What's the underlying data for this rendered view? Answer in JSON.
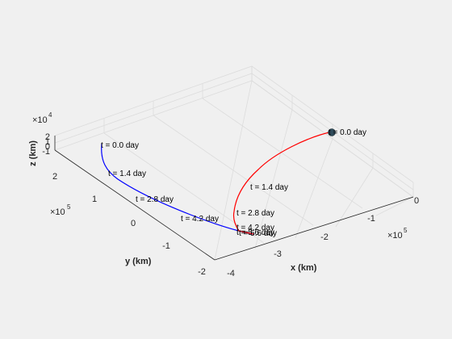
{
  "chart_data": {
    "type": "line",
    "title": "",
    "xlabel": "x (km)",
    "ylabel": "y (km)",
    "zlabel": "z (km)",
    "x_multiplier": "×10",
    "x_multiplier_exp": "5",
    "y_multiplier": "×10",
    "y_multiplier_exp": "5",
    "z_multiplier": "×10",
    "z_multiplier_exp": "4",
    "xlim": [
      -4,
      0
    ],
    "ylim": [
      -2,
      2.5
    ],
    "zlim": [
      -1,
      2
    ],
    "x_ticks": [
      "-4",
      "-3",
      "-2",
      "-1",
      "0"
    ],
    "y_ticks": [
      "-2",
      "-1",
      "0",
      "1",
      "2"
    ],
    "z_ticks": [
      "-1",
      "0",
      "1",
      "2"
    ],
    "grid": true,
    "series": [
      {
        "color": "#0000ff",
        "x": [
          -3.7,
          -3.68,
          -3.63,
          -3.56,
          -3.47,
          -3.38,
          -3.3,
          -3.24,
          -3.2,
          -3.18
        ],
        "y": [
          2.35,
          2.1,
          1.75,
          1.4,
          1.05,
          0.7,
          0.3,
          -0.1,
          -0.5,
          -0.8
        ],
        "z": [
          0.7,
          0.55,
          0.4,
          0.25,
          0.1,
          -0.05,
          -0.2,
          -0.4,
          -0.6,
          -0.8
        ]
      },
      {
        "color": "#ff0000",
        "x": [
          -0.2,
          -0.45,
          -0.8,
          -1.2,
          -1.6,
          -2.0,
          -2.3,
          -2.55,
          -2.75,
          -2.9,
          -3.1
        ],
        "y": [
          -2.3,
          -1.95,
          -1.6,
          -1.3,
          -1.1,
          -1.0,
          -0.97,
          -0.95,
          -0.93,
          -0.9,
          -0.82
        ],
        "z": [
          0.6,
          0.5,
          0.35,
          0.2,
          0.05,
          -0.1,
          -0.25,
          -0.4,
          -0.55,
          -0.7,
          -0.8
        ]
      }
    ],
    "annotations": [
      "t = 0.0 day",
      "t = 1.4 day",
      "t = 2.8 day",
      "t = 4.2 day",
      "t = 5.6 day",
      "t = 0.0 day",
      "t = 1.4 day",
      "t = 2.8 day",
      "t = 4.2 day",
      "t = 5.6 day"
    ],
    "earth_color": "#2e4a5a"
  }
}
